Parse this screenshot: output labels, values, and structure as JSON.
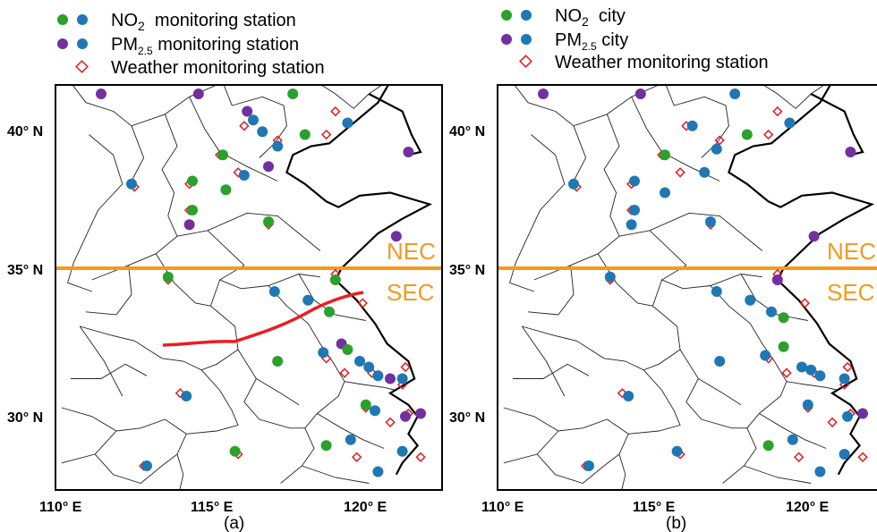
{
  "colors": {
    "no2": "#2ca02c",
    "pm25": "#7030a0",
    "city": "#1f77b4",
    "weather": "#e41a1c",
    "divider": "#f39a1f",
    "boundary": "#ed1c24"
  },
  "panels": [
    {
      "id": "a",
      "label": "(a)",
      "legend": [
        {
          "key": "no2",
          "text": "NO",
          "sub": "2",
          "rest": "  monitoring station"
        },
        {
          "key": "pm25",
          "text": "PM",
          "sub": "2.5",
          "rest": " monitoring station"
        },
        {
          "key": "weather",
          "text": "Weather monitoring station",
          "sub": "",
          "rest": ""
        }
      ],
      "x_ticks": [
        "110° E",
        "115° E",
        "120° E"
      ],
      "y_ticks": [
        "40° N",
        "35° N",
        "30° N"
      ],
      "regions": [
        "NEC",
        "SEC"
      ]
    },
    {
      "id": "b",
      "label": "(b)",
      "legend": [
        {
          "key": "no2",
          "text": "NO",
          "sub": "2",
          "rest": "  city"
        },
        {
          "key": "pm25",
          "text": "PM",
          "sub": "2.5",
          "rest": " city"
        },
        {
          "key": "weather",
          "text": "Weather monitoring station",
          "sub": "",
          "rest": ""
        }
      ],
      "x_ticks": [
        "110° E",
        "115° E",
        "120° E"
      ],
      "y_ticks": [
        "40° N",
        "35° N",
        "30° N"
      ],
      "regions": [
        "NEC",
        "SEC"
      ]
    }
  ],
  "stations_a": [
    {
      "lon": 111.5,
      "lat": 41.0,
      "t": "pm25"
    },
    {
      "lon": 114.7,
      "lat": 41.0,
      "t": "pm25"
    },
    {
      "lon": 117.8,
      "lat": 41.0,
      "t": "no2"
    },
    {
      "lon": 116.3,
      "lat": 40.4,
      "t": "pm25"
    },
    {
      "lon": 116.5,
      "lat": 40.1,
      "t": "city"
    },
    {
      "lon": 116.8,
      "lat": 39.7,
      "t": "city"
    },
    {
      "lon": 117.3,
      "lat": 39.2,
      "t": "city"
    },
    {
      "lon": 118.2,
      "lat": 39.6,
      "t": "no2"
    },
    {
      "lon": 119.6,
      "lat": 40.0,
      "t": "city"
    },
    {
      "lon": 115.5,
      "lat": 38.9,
      "t": "no2"
    },
    {
      "lon": 116.2,
      "lat": 38.2,
      "t": "city"
    },
    {
      "lon": 117.0,
      "lat": 38.5,
      "t": "pm25"
    },
    {
      "lon": 112.5,
      "lat": 37.9,
      "t": "city"
    },
    {
      "lon": 114.5,
      "lat": 38.0,
      "t": "no2"
    },
    {
      "lon": 115.6,
      "lat": 37.7,
      "t": "no2"
    },
    {
      "lon": 114.5,
      "lat": 37.0,
      "t": "no2"
    },
    {
      "lon": 114.4,
      "lat": 36.5,
      "t": "pm25"
    },
    {
      "lon": 117.0,
      "lat": 36.6,
      "t": "no2"
    },
    {
      "lon": 121.2,
      "lat": 36.1,
      "t": "pm25"
    },
    {
      "lon": 121.6,
      "lat": 39.0,
      "t": "pm25"
    },
    {
      "lon": 113.7,
      "lat": 34.7,
      "t": "no2"
    },
    {
      "lon": 117.2,
      "lat": 34.2,
      "t": "city"
    },
    {
      "lon": 119.2,
      "lat": 34.6,
      "t": "no2"
    },
    {
      "lon": 118.3,
      "lat": 33.9,
      "t": "city"
    },
    {
      "lon": 119.0,
      "lat": 33.5,
      "t": "no2"
    },
    {
      "lon": 117.3,
      "lat": 31.8,
      "t": "no2"
    },
    {
      "lon": 118.8,
      "lat": 32.1,
      "t": "city"
    },
    {
      "lon": 119.4,
      "lat": 32.4,
      "t": "pm25"
    },
    {
      "lon": 119.6,
      "lat": 32.2,
      "t": "no2"
    },
    {
      "lon": 120.0,
      "lat": 31.8,
      "t": "city"
    },
    {
      "lon": 120.3,
      "lat": 31.6,
      "t": "city"
    },
    {
      "lon": 120.6,
      "lat": 31.3,
      "t": "city"
    },
    {
      "lon": 121.0,
      "lat": 31.2,
      "t": "pm25"
    },
    {
      "lon": 121.4,
      "lat": 31.2,
      "t": "city"
    },
    {
      "lon": 120.2,
      "lat": 30.3,
      "t": "no2"
    },
    {
      "lon": 120.5,
      "lat": 30.1,
      "t": "city"
    },
    {
      "lon": 121.5,
      "lat": 29.9,
      "t": "pm25"
    },
    {
      "lon": 122.0,
      "lat": 30.0,
      "t": "pm25"
    },
    {
      "lon": 114.3,
      "lat": 30.6,
      "t": "city"
    },
    {
      "lon": 113.0,
      "lat": 28.2,
      "t": "city"
    },
    {
      "lon": 115.9,
      "lat": 28.7,
      "t": "no2"
    },
    {
      "lon": 118.9,
      "lat": 28.9,
      "t": "no2"
    },
    {
      "lon": 119.7,
      "lat": 29.1,
      "t": "city"
    },
    {
      "lon": 120.6,
      "lat": 28.0,
      "t": "city"
    },
    {
      "lon": 121.4,
      "lat": 28.7,
      "t": "city"
    }
  ],
  "stations_b": [
    {
      "lon": 111.5,
      "lat": 41.0,
      "t": "pm25"
    },
    {
      "lon": 114.7,
      "lat": 41.0,
      "t": "pm25"
    },
    {
      "lon": 117.8,
      "lat": 41.0,
      "t": "city"
    },
    {
      "lon": 116.4,
      "lat": 39.9,
      "t": "city"
    },
    {
      "lon": 117.2,
      "lat": 39.1,
      "t": "city"
    },
    {
      "lon": 118.2,
      "lat": 39.6,
      "t": "no2"
    },
    {
      "lon": 119.6,
      "lat": 40.0,
      "t": "city"
    },
    {
      "lon": 121.6,
      "lat": 39.0,
      "t": "pm25"
    },
    {
      "lon": 115.5,
      "lat": 38.9,
      "t": "no2"
    },
    {
      "lon": 115.5,
      "lat": 37.6,
      "t": "city"
    },
    {
      "lon": 116.8,
      "lat": 38.3,
      "t": "city"
    },
    {
      "lon": 112.5,
      "lat": 37.9,
      "t": "city"
    },
    {
      "lon": 114.5,
      "lat": 38.0,
      "t": "city"
    },
    {
      "lon": 114.5,
      "lat": 37.0,
      "t": "city"
    },
    {
      "lon": 114.4,
      "lat": 36.5,
      "t": "city"
    },
    {
      "lon": 117.0,
      "lat": 36.6,
      "t": "city"
    },
    {
      "lon": 120.4,
      "lat": 36.1,
      "t": "pm25"
    },
    {
      "lon": 113.7,
      "lat": 34.7,
      "t": "city"
    },
    {
      "lon": 117.2,
      "lat": 34.2,
      "t": "city"
    },
    {
      "lon": 118.3,
      "lat": 33.9,
      "t": "city"
    },
    {
      "lon": 119.2,
      "lat": 34.6,
      "t": "pm25"
    },
    {
      "lon": 119.0,
      "lat": 33.5,
      "t": "city"
    },
    {
      "lon": 119.4,
      "lat": 33.3,
      "t": "no2"
    },
    {
      "lon": 118.8,
      "lat": 32.0,
      "t": "city"
    },
    {
      "lon": 119.4,
      "lat": 32.3,
      "t": "no2"
    },
    {
      "lon": 120.0,
      "lat": 31.6,
      "t": "city"
    },
    {
      "lon": 120.3,
      "lat": 31.5,
      "t": "city"
    },
    {
      "lon": 120.6,
      "lat": 31.3,
      "t": "city"
    },
    {
      "lon": 121.4,
      "lat": 31.2,
      "t": "city"
    },
    {
      "lon": 120.2,
      "lat": 30.3,
      "t": "city"
    },
    {
      "lon": 121.5,
      "lat": 29.9,
      "t": "city"
    },
    {
      "lon": 122.0,
      "lat": 30.0,
      "t": "pm25"
    },
    {
      "lon": 117.3,
      "lat": 31.8,
      "t": "city"
    },
    {
      "lon": 114.3,
      "lat": 30.6,
      "t": "city"
    },
    {
      "lon": 113.0,
      "lat": 28.2,
      "t": "city"
    },
    {
      "lon": 115.9,
      "lat": 28.7,
      "t": "city"
    },
    {
      "lon": 118.9,
      "lat": 28.9,
      "t": "no2"
    },
    {
      "lon": 119.7,
      "lat": 29.1,
      "t": "city"
    },
    {
      "lon": 120.6,
      "lat": 28.0,
      "t": "city"
    },
    {
      "lon": 121.4,
      "lat": 28.6,
      "t": "city"
    }
  ],
  "weather_stations": [
    {
      "lon": 114.7,
      "lat": 41.0
    },
    {
      "lon": 117.8,
      "lat": 41.0
    },
    {
      "lon": 119.2,
      "lat": 40.4
    },
    {
      "lon": 116.2,
      "lat": 39.9
    },
    {
      "lon": 117.3,
      "lat": 39.4
    },
    {
      "lon": 118.9,
      "lat": 39.6
    },
    {
      "lon": 115.4,
      "lat": 38.9
    },
    {
      "lon": 116.0,
      "lat": 38.3
    },
    {
      "lon": 112.6,
      "lat": 37.8
    },
    {
      "lon": 114.4,
      "lat": 37.9
    },
    {
      "lon": 114.4,
      "lat": 37.0
    },
    {
      "lon": 117.0,
      "lat": 36.5
    },
    {
      "lon": 113.7,
      "lat": 34.6
    },
    {
      "lon": 119.2,
      "lat": 34.8
    },
    {
      "lon": 120.1,
      "lat": 33.8
    },
    {
      "lon": 117.3,
      "lat": 31.8
    },
    {
      "lon": 118.9,
      "lat": 31.9
    },
    {
      "lon": 119.5,
      "lat": 31.4
    },
    {
      "lon": 120.4,
      "lat": 31.4
    },
    {
      "lon": 121.5,
      "lat": 31.6
    },
    {
      "lon": 121.4,
      "lat": 31.0
    },
    {
      "lon": 120.2,
      "lat": 30.2
    },
    {
      "lon": 121.0,
      "lat": 29.7
    },
    {
      "lon": 121.6,
      "lat": 30.0
    },
    {
      "lon": 114.1,
      "lat": 30.7
    },
    {
      "lon": 112.9,
      "lat": 28.2
    },
    {
      "lon": 116.0,
      "lat": 28.6
    },
    {
      "lon": 118.9,
      "lat": 28.9
    },
    {
      "lon": 119.9,
      "lat": 28.5
    },
    {
      "lon": 122.0,
      "lat": 28.5
    }
  ]
}
